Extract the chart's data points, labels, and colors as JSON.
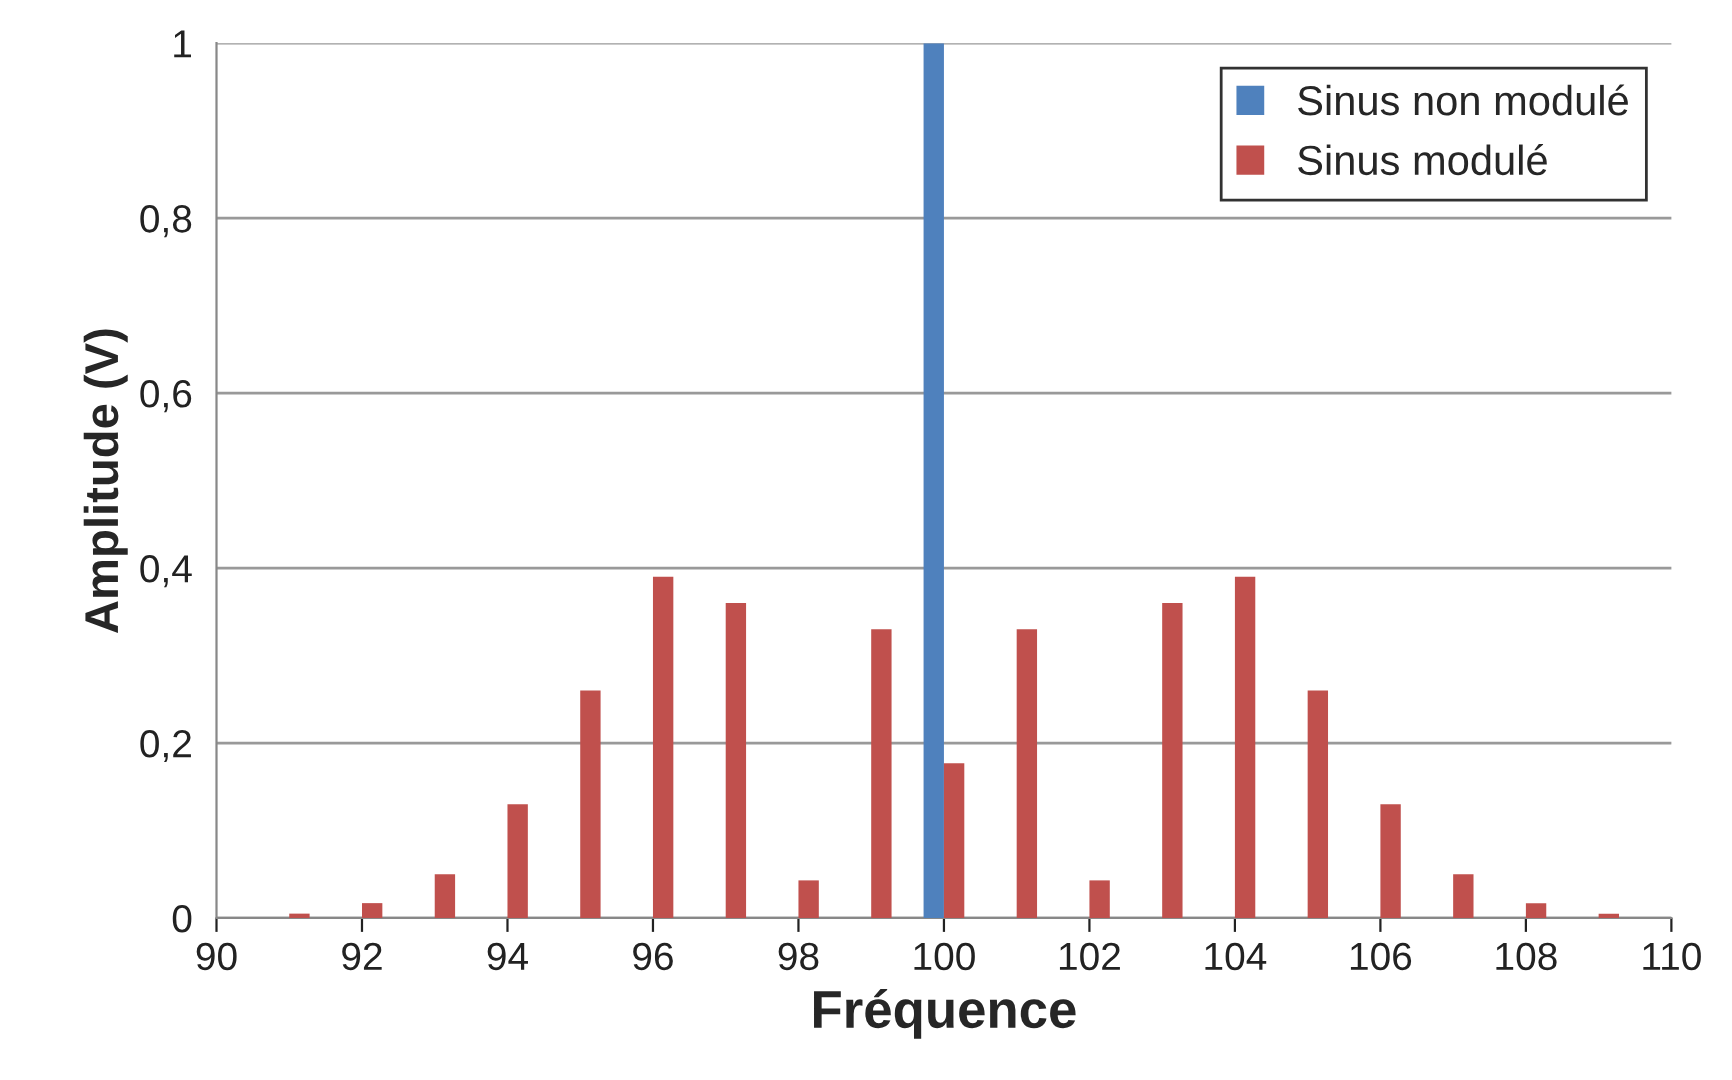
{
  "chart_data": {
    "type": "bar",
    "xlabel": "Fréquence",
    "ylabel": "Amplitude (V)",
    "xlim": [
      90,
      110
    ],
    "xticks": [
      90,
      92,
      94,
      96,
      98,
      100,
      102,
      104,
      106,
      108,
      110
    ],
    "ylim": [
      0,
      1
    ],
    "yticks": [
      0,
      {
        "value": 0.2,
        "label": "0,2"
      },
      {
        "value": 0.4,
        "label": "0,4"
      },
      {
        "value": 0.6,
        "label": "0,6"
      },
      {
        "value": 0.8,
        "label": "0,8"
      },
      1
    ],
    "grid": "y",
    "legend": "top right",
    "series": [
      {
        "name": "Sinus non modulé",
        "color": "#4f81bd",
        "x": [
          100
        ],
        "values": [
          1
        ]
      },
      {
        "name": "Sinus modulé",
        "color": "#c0504d",
        "x": [
          91,
          92,
          93,
          94,
          95,
          96,
          97,
          98,
          99,
          100,
          101,
          102,
          103,
          104,
          105,
          106,
          107,
          108,
          109
        ],
        "values": [
          0.005,
          0.017,
          0.05,
          0.13,
          0.26,
          0.39,
          0.36,
          0.043,
          0.33,
          0.177,
          0.33,
          0.043,
          0.36,
          0.39,
          0.26,
          0.13,
          0.05,
          0.017,
          0.005
        ]
      }
    ]
  }
}
